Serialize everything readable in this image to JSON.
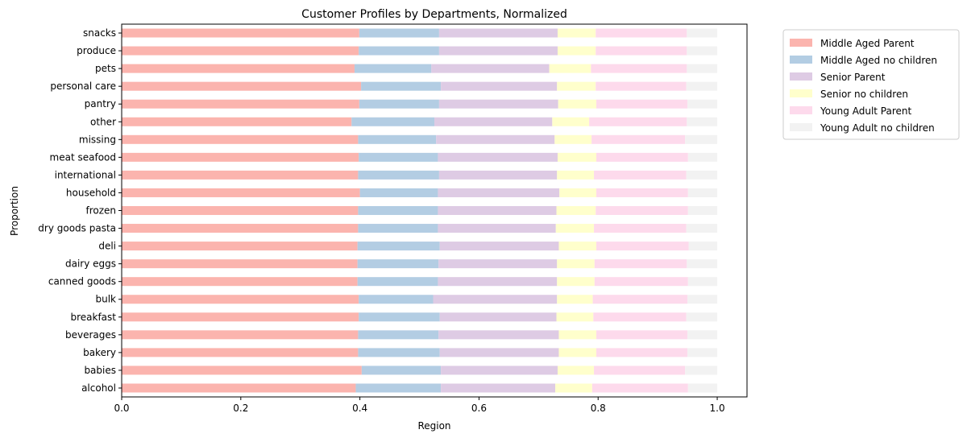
{
  "chart_data": {
    "type": "bar",
    "orientation": "horizontal",
    "stacked": true,
    "title": "Customer Profiles by Departments, Normalized",
    "xlabel": "Region",
    "ylabel": "Proportion",
    "xlim": [
      0.0,
      1.05
    ],
    "xticks": [
      "0.0",
      "0.2",
      "0.4",
      "0.6",
      "0.8",
      "1.0"
    ],
    "grid": false,
    "legend_position": "outside-top-right",
    "categories": [
      "alcohol",
      "babies",
      "bakery",
      "beverages",
      "breakfast",
      "bulk",
      "canned goods",
      "dairy eggs",
      "deli",
      "dry goods pasta",
      "frozen",
      "household",
      "international",
      "meat seafood",
      "missing",
      "other",
      "pantry",
      "personal care",
      "pets",
      "produce",
      "snacks"
    ],
    "series": [
      {
        "name": "Middle Aged Parent",
        "color": "#fbb4ae",
        "values": [
          0.393,
          0.403,
          0.397,
          0.397,
          0.398,
          0.398,
          0.396,
          0.396,
          0.396,
          0.397,
          0.397,
          0.4,
          0.397,
          0.398,
          0.397,
          0.386,
          0.399,
          0.402,
          0.391,
          0.398,
          0.399
        ]
      },
      {
        "name": "Middle Aged no children",
        "color": "#b3cde3",
        "values": [
          0.143,
          0.133,
          0.137,
          0.135,
          0.136,
          0.125,
          0.135,
          0.136,
          0.138,
          0.134,
          0.134,
          0.131,
          0.136,
          0.133,
          0.131,
          0.139,
          0.134,
          0.134,
          0.129,
          0.135,
          0.134
        ]
      },
      {
        "name": "Senior Parent",
        "color": "#decbe4",
        "values": [
          0.192,
          0.196,
          0.2,
          0.202,
          0.196,
          0.208,
          0.2,
          0.199,
          0.2,
          0.198,
          0.199,
          0.204,
          0.198,
          0.201,
          0.199,
          0.198,
          0.2,
          0.195,
          0.198,
          0.199,
          0.199
        ]
      },
      {
        "name": "Senior no children",
        "color": "#ffffcc",
        "values": [
          0.062,
          0.061,
          0.063,
          0.063,
          0.062,
          0.06,
          0.063,
          0.063,
          0.063,
          0.064,
          0.066,
          0.062,
          0.062,
          0.065,
          0.062,
          0.062,
          0.064,
          0.065,
          0.07,
          0.064,
          0.064
        ]
      },
      {
        "name": "Young Adult Parent",
        "color": "#fddaec",
        "values": [
          0.161,
          0.153,
          0.153,
          0.153,
          0.156,
          0.159,
          0.157,
          0.155,
          0.155,
          0.155,
          0.155,
          0.154,
          0.155,
          0.154,
          0.157,
          0.164,
          0.153,
          0.152,
          0.161,
          0.153,
          0.153
        ]
      },
      {
        "name": "Young Adult no children",
        "color": "#f2f2f2",
        "values": [
          0.049,
          0.054,
          0.05,
          0.05,
          0.052,
          0.05,
          0.049,
          0.051,
          0.048,
          0.052,
          0.049,
          0.049,
          0.052,
          0.049,
          0.054,
          0.051,
          0.05,
          0.052,
          0.051,
          0.051,
          0.051
        ]
      }
    ]
  }
}
